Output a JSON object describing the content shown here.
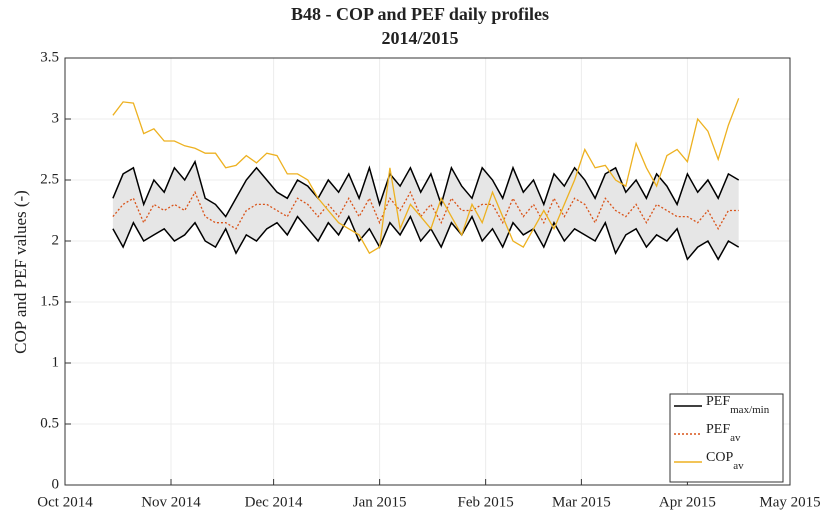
{
  "chart_data": {
    "type": "line",
    "title": "B48 - COP and PEF daily profiles",
    "subtitle": "2014/2015",
    "y_label": "COP and PEF values (-)",
    "xlim": [
      "2014-10",
      "2015-05"
    ],
    "xticks": [
      {
        "value": "2014-10",
        "label": "Oct 2014"
      },
      {
        "value": "2014-11",
        "label": "Nov 2014"
      },
      {
        "value": "2014-12",
        "label": "Dec 2014"
      },
      {
        "value": "2015-01",
        "label": "Jan 2015"
      },
      {
        "value": "2015-02",
        "label": "Feb 2015"
      },
      {
        "value": "2015-03",
        "label": "Mar 2015"
      },
      {
        "value": "2015-04",
        "label": "Apr 2015"
      },
      {
        "value": "2015-05",
        "label": "May 2015"
      }
    ],
    "ylim": [
      0,
      3.5
    ],
    "yticks": [
      0,
      0.5,
      1,
      1.5,
      2,
      2.5,
      3,
      3.5
    ],
    "grid": true,
    "legend": "lower right",
    "x": [
      "2014-10-15",
      "2014-10-18",
      "2014-10-21",
      "2014-10-24",
      "2014-10-27",
      "2014-10-30",
      "2014-11-02",
      "2014-11-05",
      "2014-11-08",
      "2014-11-11",
      "2014-11-14",
      "2014-11-17",
      "2014-11-20",
      "2014-11-23",
      "2014-11-26",
      "2014-11-29",
      "2014-12-02",
      "2014-12-05",
      "2014-12-08",
      "2014-12-11",
      "2014-12-14",
      "2014-12-17",
      "2014-12-20",
      "2014-12-23",
      "2014-12-26",
      "2014-12-29",
      "2015-01-01",
      "2015-01-04",
      "2015-01-07",
      "2015-01-10",
      "2015-01-13",
      "2015-01-16",
      "2015-01-19",
      "2015-01-22",
      "2015-01-25",
      "2015-01-28",
      "2015-01-31",
      "2015-02-03",
      "2015-02-06",
      "2015-02-09",
      "2015-02-12",
      "2015-02-15",
      "2015-02-18",
      "2015-02-21",
      "2015-02-24",
      "2015-02-27",
      "2015-03-02",
      "2015-03-05",
      "2015-03-08",
      "2015-03-11",
      "2015-03-14",
      "2015-03-17",
      "2015-03-20",
      "2015-03-23",
      "2015-03-26",
      "2015-03-29",
      "2015-04-01",
      "2015-04-04",
      "2015-04-07",
      "2015-04-10",
      "2015-04-13",
      "2015-04-16"
    ],
    "series": [
      {
        "name": "PEF",
        "subscript": "max/min",
        "color": "#000000",
        "band_color": "#e6e6e6",
        "upper": [
          2.35,
          2.55,
          2.6,
          2.3,
          2.5,
          2.4,
          2.6,
          2.5,
          2.65,
          2.35,
          2.3,
          2.2,
          2.35,
          2.5,
          2.6,
          2.5,
          2.4,
          2.35,
          2.5,
          2.45,
          2.35,
          2.5,
          2.4,
          2.55,
          2.35,
          2.6,
          2.3,
          2.55,
          2.45,
          2.6,
          2.4,
          2.55,
          2.3,
          2.6,
          2.45,
          2.35,
          2.6,
          2.5,
          2.35,
          2.6,
          2.4,
          2.5,
          2.3,
          2.55,
          2.45,
          2.6,
          2.5,
          2.35,
          2.55,
          2.6,
          2.4,
          2.5,
          2.35,
          2.55,
          2.45,
          2.3,
          2.55,
          2.4,
          2.5,
          2.35,
          2.55,
          2.5
        ],
        "lower": [
          2.1,
          1.95,
          2.15,
          2.0,
          2.05,
          2.1,
          2.0,
          2.05,
          2.15,
          2.0,
          1.95,
          2.1,
          1.9,
          2.05,
          2.0,
          2.1,
          2.15,
          2.05,
          2.2,
          2.1,
          2.0,
          2.15,
          2.05,
          2.2,
          2.0,
          2.1,
          1.95,
          2.15,
          2.05,
          2.2,
          2.0,
          2.1,
          1.95,
          2.15,
          2.05,
          2.2,
          2.0,
          2.1,
          1.95,
          2.15,
          2.05,
          2.1,
          1.95,
          2.15,
          2.0,
          2.1,
          2.05,
          2.0,
          2.15,
          1.9,
          2.05,
          2.1,
          1.95,
          2.05,
          2.0,
          2.1,
          1.85,
          1.95,
          2.0,
          1.85,
          2.0,
          1.95
        ]
      },
      {
        "name": "PEF",
        "subscript": "av",
        "color": "#d95319",
        "dash": "2 2",
        "values": [
          2.2,
          2.3,
          2.35,
          2.15,
          2.3,
          2.25,
          2.3,
          2.25,
          2.4,
          2.2,
          2.15,
          2.15,
          2.1,
          2.25,
          2.3,
          2.3,
          2.25,
          2.2,
          2.35,
          2.3,
          2.2,
          2.3,
          2.2,
          2.35,
          2.2,
          2.35,
          2.15,
          2.35,
          2.25,
          2.4,
          2.2,
          2.3,
          2.15,
          2.35,
          2.25,
          2.25,
          2.3,
          2.3,
          2.15,
          2.35,
          2.2,
          2.3,
          2.15,
          2.35,
          2.2,
          2.35,
          2.3,
          2.15,
          2.35,
          2.25,
          2.2,
          2.3,
          2.15,
          2.3,
          2.25,
          2.2,
          2.2,
          2.15,
          2.25,
          2.1,
          2.25,
          2.25
        ]
      },
      {
        "name": "COP",
        "subscript": "av",
        "color": "#edb120",
        "values": [
          3.03,
          3.14,
          3.13,
          2.88,
          2.92,
          2.82,
          2.82,
          2.78,
          2.76,
          2.72,
          2.72,
          2.6,
          2.62,
          2.7,
          2.64,
          2.72,
          2.7,
          2.55,
          2.55,
          2.5,
          2.35,
          2.25,
          2.15,
          2.1,
          2.05,
          1.9,
          1.95,
          2.6,
          2.1,
          2.3,
          2.2,
          2.1,
          2.35,
          2.2,
          2.05,
          2.3,
          2.15,
          2.4,
          2.2,
          2.0,
          1.95,
          2.1,
          2.25,
          2.1,
          2.3,
          2.5,
          2.75,
          2.6,
          2.62,
          2.5,
          2.45,
          2.8,
          2.6,
          2.45,
          2.7,
          2.75,
          2.65,
          3.0,
          2.9,
          2.67,
          2.95,
          3.17
        ]
      }
    ]
  }
}
